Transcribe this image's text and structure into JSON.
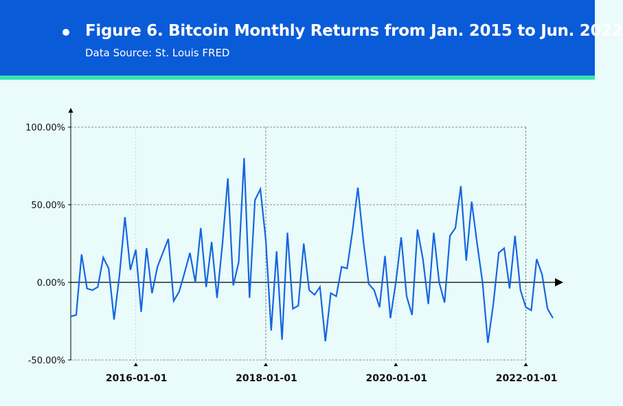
{
  "header": {
    "title": "Figure 6. Bitcoin Monthly Returns from Jan. 2015 to Jun. 2022",
    "subtitle": "Data Source: St. Louis FRED"
  },
  "colors": {
    "header_bg": "#0a5bd8",
    "accent_strip": "#33e6b0",
    "plot_bg": "#e9fbfb",
    "line": "#1466e0"
  },
  "chart_data": {
    "type": "line",
    "xlabel": "",
    "ylabel": "",
    "x_start": "2015-01-01",
    "x_end": "2022-06-01",
    "xlim": [
      "2015-01-01",
      "2022-06-01"
    ],
    "ylim": [
      -50,
      100
    ],
    "y_ticks": [
      {
        "value": 100,
        "label": "100.00%"
      },
      {
        "value": 50,
        "label": "50.00%"
      },
      {
        "value": 0,
        "label": "0.00%"
      },
      {
        "value": -50,
        "label": "-50.00%"
      }
    ],
    "x_ticks": [
      {
        "value": "2016-01-01",
        "label": "2016-01-01"
      },
      {
        "value": "2018-01-01",
        "label": "2018-01-01"
      },
      {
        "value": "2020-01-01",
        "label": "2020-01-01"
      },
      {
        "value": "2022-01-01",
        "label": "2022-01-01"
      }
    ],
    "grid": true,
    "series": [
      {
        "values": [
          -22,
          -21,
          18,
          -4,
          -5,
          -3,
          16,
          9,
          -24,
          5,
          42,
          8,
          21,
          -19,
          22,
          -7,
          10,
          19,
          28,
          -12,
          -6,
          6,
          19,
          0,
          35,
          -3,
          26,
          -10,
          25,
          67,
          -2,
          13,
          80,
          -10,
          53,
          60,
          27,
          -31,
          20,
          -37,
          32,
          -17,
          -15,
          25,
          -5,
          -8,
          -3,
          -38,
          -7,
          -9,
          10,
          9,
          33,
          61,
          27,
          -1,
          -5,
          -16,
          17,
          -23,
          0,
          29,
          -9,
          -21,
          34,
          15,
          -14,
          32,
          0,
          -13,
          30,
          35,
          62,
          14,
          52,
          25,
          0,
          -39,
          -14,
          19,
          22,
          -4,
          30,
          -5,
          -16,
          -18,
          15,
          5,
          -17,
          -23
        ]
      }
    ]
  }
}
